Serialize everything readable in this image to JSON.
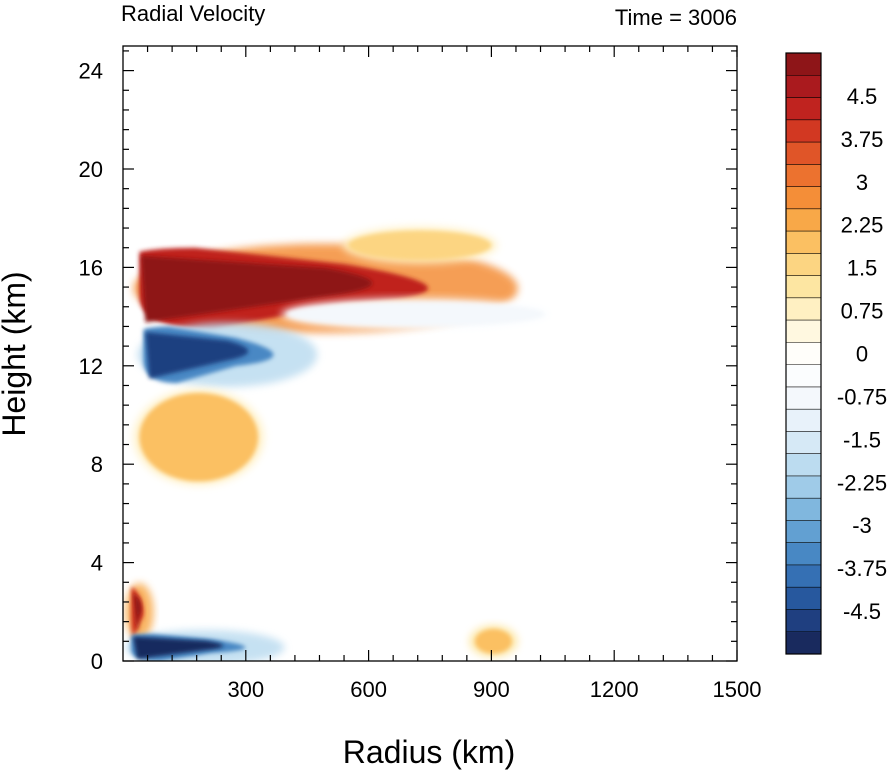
{
  "chart_data": {
    "type": "heatmap",
    "title": "Radial Velocity",
    "subtitle": "Time = 3006",
    "xlabel": "Radius (km)",
    "ylabel": "Height (km)",
    "xlim": [
      0,
      1500
    ],
    "ylim": [
      0,
      25
    ],
    "x_ticks": [
      300,
      600,
      900,
      1200,
      1500
    ],
    "x_tick_labels": [
      "300",
      "600",
      "900",
      "1200",
      "1500"
    ],
    "y_ticks": [
      0,
      4,
      8,
      12,
      16,
      20,
      24
    ],
    "y_tick_labels": [
      "0",
      "4",
      "8",
      "12",
      "16",
      "20",
      "24"
    ],
    "grid": false,
    "colorbar": {
      "range": [
        -5.25,
        5.25
      ],
      "step": 0.375,
      "label_values": [
        4.5,
        3.75,
        3,
        2.25,
        1.5,
        0.75,
        0,
        -0.75,
        -1.5,
        -2.25,
        -3,
        -3.75,
        -4.5
      ],
      "labels": [
        "4.5",
        "3.75",
        "3",
        "2.25",
        "1.5",
        "0.75",
        "0",
        "-0.75",
        "-1.5",
        "-2.25",
        "-3",
        "-3.75",
        "-4.5"
      ],
      "colors": [
        "#192a5e",
        "#1f3f80",
        "#27589e",
        "#3570b4",
        "#4888c4",
        "#62a0d2",
        "#80b7de",
        "#9fcbe8",
        "#bcdcf0",
        "#d6e9f6",
        "#e8f2fa",
        "#f4f8fc",
        "#fbfdfe",
        "#fffefa",
        "#fff8e0",
        "#fff0c2",
        "#fde6a2",
        "#fcd582",
        "#fbc062",
        "#f8a848",
        "#f48e38",
        "#ec722f",
        "#e05528",
        "#d23822",
        "#c0231f",
        "#aa1a1e",
        "#8e1518"
      ],
      "colormap_name": "blue-white-red"
    },
    "features": [
      {
        "region": "upper outflow",
        "sign": "positive",
        "value": 5.3,
        "r_range": [
          40,
          950
        ],
        "z_range": [
          13.5,
          16.8
        ]
      },
      {
        "region": "inflow below outflow",
        "sign": "negative",
        "value": -4.6,
        "r_range": [
          50,
          460
        ],
        "z_range": [
          11.3,
          13.6
        ]
      },
      {
        "region": "mid-level outflow",
        "sign": "positive",
        "value": 1.6,
        "r_range": [
          40,
          330
        ],
        "z_range": [
          7.3,
          10.9
        ]
      },
      {
        "region": "eyewall outflow near 2 km",
        "sign": "positive",
        "value": 4.5,
        "r_range": [
          20,
          60
        ],
        "z_range": [
          1.0,
          3.0
        ]
      },
      {
        "region": "boundary-layer inflow",
        "sign": "negative",
        "value": -5.0,
        "r_range": [
          20,
          380
        ],
        "z_range": [
          0,
          1.1
        ]
      },
      {
        "region": "near-surface band",
        "sign": "positive",
        "value": 1.8,
        "r_range": [
          860,
          950
        ],
        "z_range": [
          0.3,
          1.3
        ]
      },
      {
        "region": "upper faint outflow",
        "sign": "positive",
        "value": 1.2,
        "r_range": [
          550,
          900
        ],
        "z_range": [
          16.3,
          17.5
        ]
      },
      {
        "region": "mid-level inflow",
        "sign": "negative",
        "value": -1.1,
        "r_range": [
          400,
          1030
        ],
        "z_range": [
          13.6,
          14.6
        ]
      }
    ]
  }
}
